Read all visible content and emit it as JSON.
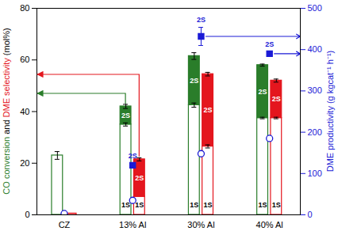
{
  "chart_data": {
    "type": "bar",
    "categories": [
      "CZ",
      "13% Al",
      "30% Al",
      "40% Al"
    ],
    "ylabel": "CO conversion and DME selectivity (mol%)",
    "y2label": "DME productivity (g kgcat⁻¹ h⁻¹)",
    "ylim": [
      0,
      80
    ],
    "yticks": [
      0,
      20,
      40,
      60,
      80
    ],
    "y2lim": [
      0,
      500
    ],
    "y2ticks": [
      0,
      100,
      200,
      300,
      400,
      500
    ],
    "stacked": true,
    "series": [
      {
        "name": "CO conversion",
        "type": "bar",
        "color": "#2a7d2a",
        "segments": [
          {
            "name": "1S",
            "color": "#ffffff",
            "values": [
              23,
              35,
              42.5,
              37.5
            ],
            "errors": [
              1.5,
              0.6,
              0.8,
              0.3
            ],
            "labels": [
              null,
              "1S",
              "1S",
              "1S"
            ]
          },
          {
            "name": "2S",
            "color": "#2a7d2a",
            "values": [
              null,
              7,
              19,
              20.5
            ],
            "errors": [
              null,
              0.8,
              1.3,
              0.4
            ],
            "labels": [
              null,
              "2S",
              "2S",
              "2S"
            ]
          }
        ]
      },
      {
        "name": "DME selectivity",
        "type": "bar",
        "color": "#e4161e",
        "segments": [
          {
            "name": "1S",
            "color": "#ffffff",
            "values": [
              0.5,
              7,
              26.5,
              37.5
            ],
            "errors": [
              null,
              null,
              0.6,
              0.3
            ],
            "labels": [
              null,
              "1S",
              "1S",
              "1S"
            ]
          },
          {
            "name": "2S",
            "color": "#e4161e",
            "values": [
              null,
              14.5,
              28,
              14.5
            ],
            "errors": [
              null,
              0.6,
              0.7,
              0.6
            ],
            "labels": [
              null,
              "2S",
              "2S",
              "2S"
            ]
          }
        ]
      },
      {
        "name": "1S",
        "type": "scatter",
        "axis": "y2",
        "color": "#1a1ad6",
        "marker": "open circle",
        "values": [
          3,
          35,
          148,
          185
        ]
      },
      {
        "name": "2S",
        "type": "scatter",
        "axis": "y2",
        "color": "#1a1ad6",
        "marker": "square",
        "values": [
          null,
          120,
          432,
          390
        ],
        "errors": [
          null,
          5,
          22,
          6
        ],
        "labels": [
          null,
          "2S",
          "2S",
          "2S"
        ]
      }
    ]
  }
}
